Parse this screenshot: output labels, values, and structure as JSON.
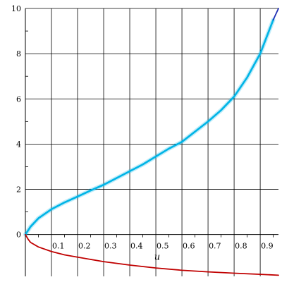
{
  "chart_data": {
    "type": "line",
    "title": "",
    "xlabel": "u",
    "ylabel": "",
    "xlim": [
      0,
      0.97
    ],
    "ylim": [
      -1.85,
      10
    ],
    "grid": true,
    "legend": "none",
    "x_ticks": [
      0.1,
      0.2,
      0.3,
      0.4,
      0.5,
      0.6,
      0.7,
      0.8,
      0.9
    ],
    "x_tick_labels": [
      "0.1",
      "0.2",
      "0.3",
      "0.4",
      "0.5",
      "0.6",
      "0.7",
      "0.8",
      "0.9"
    ],
    "y_ticks": [
      0,
      2,
      4,
      6,
      8,
      10
    ],
    "y_tick_labels": [
      "0",
      "2",
      "4",
      "6",
      "8",
      "10"
    ],
    "series": [
      {
        "color": "#00b4e6",
        "style": "thick",
        "x": [
          0,
          0.02,
          0.05,
          0.1,
          0.15,
          0.2,
          0.25,
          0.3,
          0.35,
          0.4,
          0.45,
          0.5,
          0.55,
          0.6,
          0.65,
          0.7,
          0.75,
          0.8,
          0.85,
          0.9,
          0.93,
          0.95
        ],
        "y": [
          0,
          0.35,
          0.72,
          1.12,
          1.42,
          1.68,
          1.95,
          2.2,
          2.5,
          2.8,
          3.1,
          3.45,
          3.8,
          4.1,
          4.55,
          5.0,
          5.5,
          6.1,
          6.95,
          8.0,
          8.9,
          9.5
        ]
      },
      {
        "color": "#1f2fb5",
        "style": "thin",
        "x": [
          0.95,
          0.96,
          0.97
        ],
        "y": [
          9.5,
          9.75,
          10.0
        ]
      },
      {
        "color": "#c00000",
        "style": "thin",
        "x": [
          0,
          0.01,
          0.02,
          0.05,
          0.1,
          0.15,
          0.2,
          0.3,
          0.4,
          0.5,
          0.6,
          0.7,
          0.8,
          0.9,
          0.97
        ],
        "y": [
          0,
          -0.2,
          -0.35,
          -0.55,
          -0.75,
          -0.9,
          -1.0,
          -1.2,
          -1.35,
          -1.48,
          -1.58,
          -1.65,
          -1.71,
          -1.76,
          -1.8
        ]
      }
    ]
  }
}
